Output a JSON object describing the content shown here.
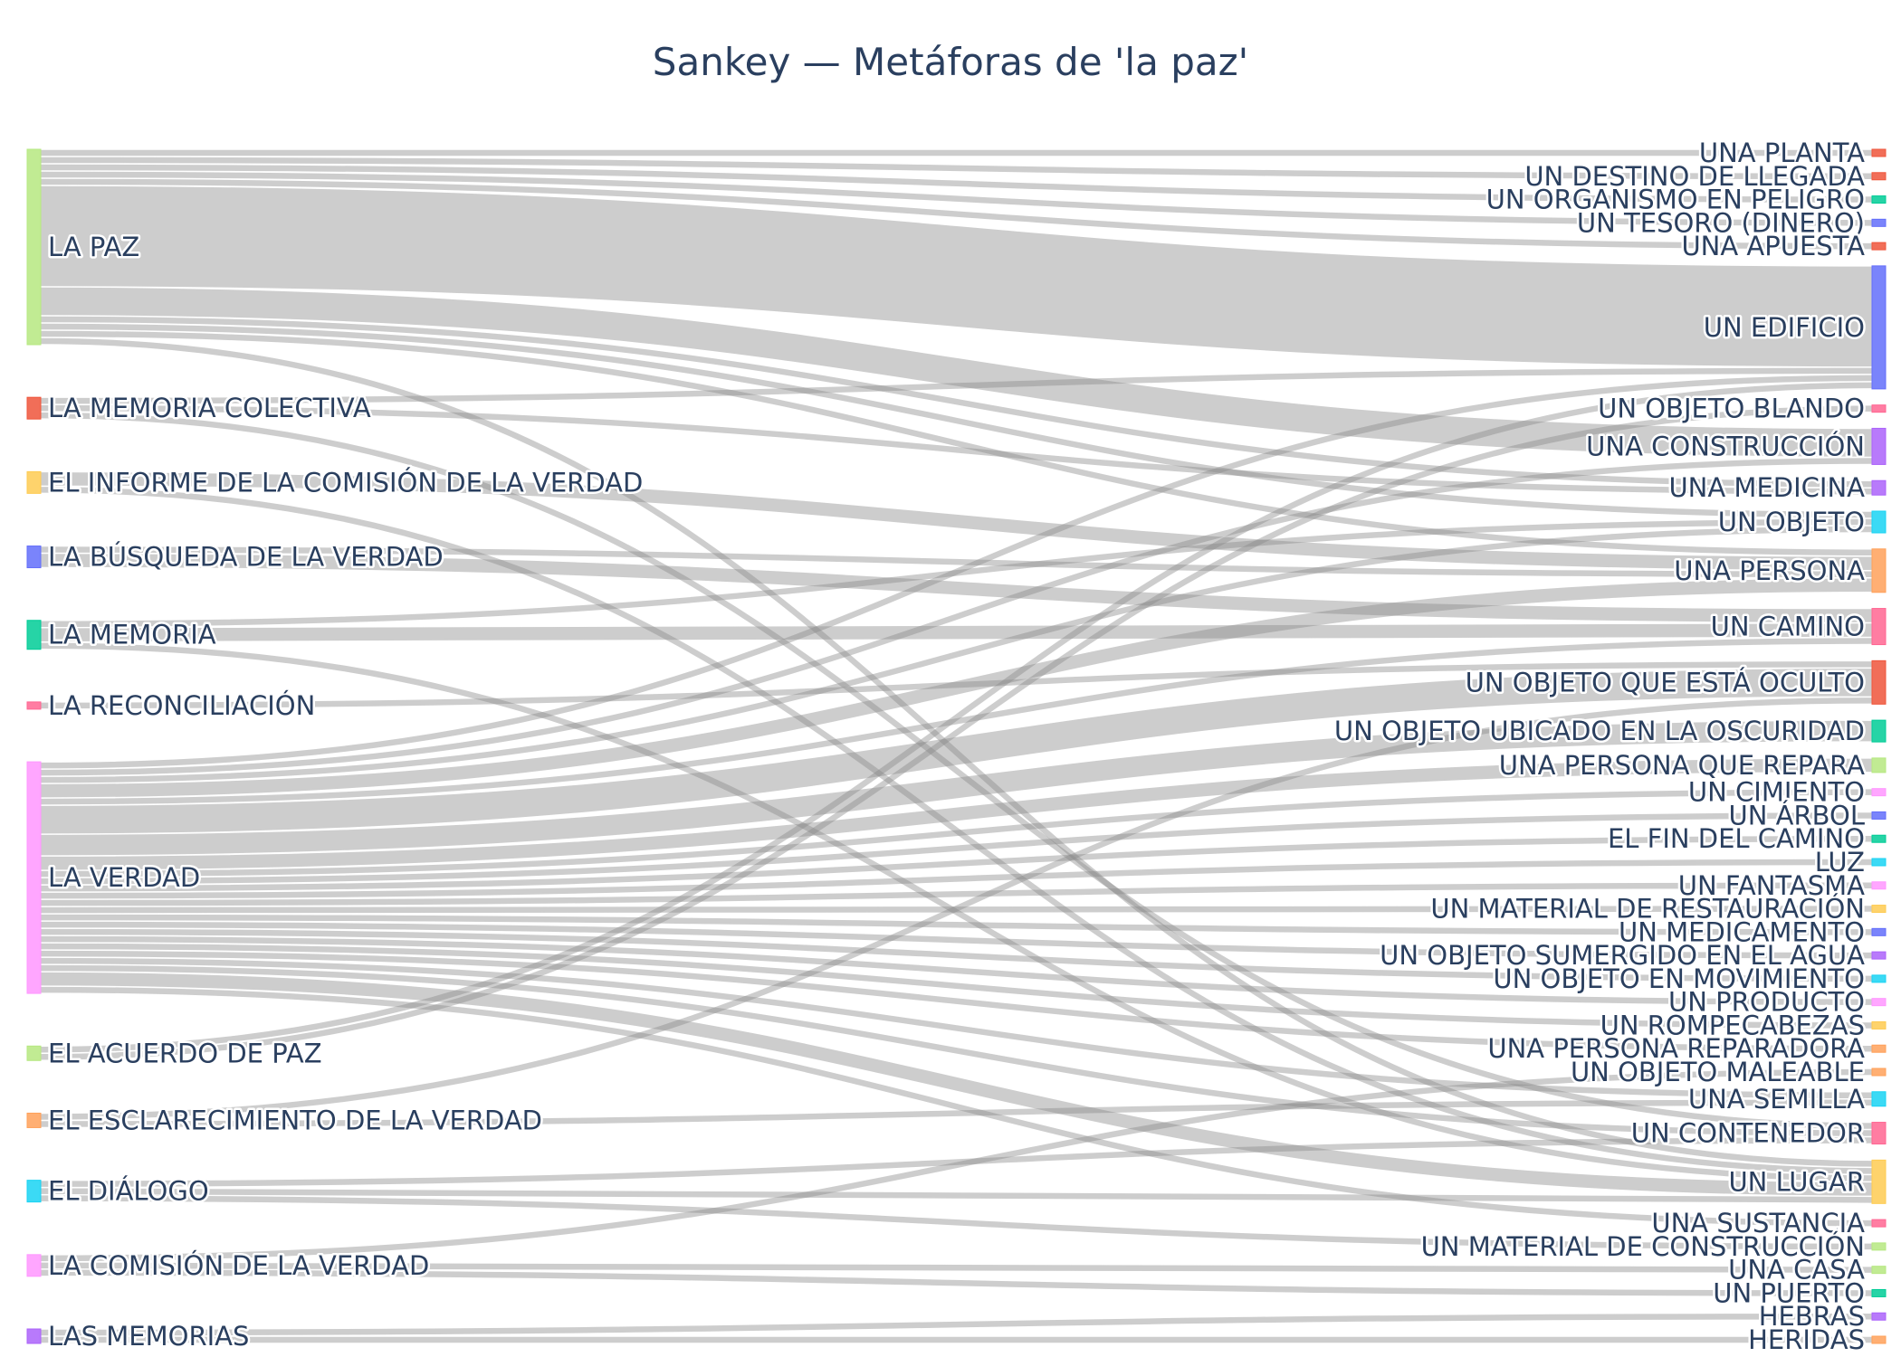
{
  "chart_data": {
    "type": "sankey",
    "title": "Sankey — Metáforas de 'la paz'",
    "link_color": "#888888",
    "sources": [
      {
        "name": "LA PAZ",
        "color": "#b6e880"
      },
      {
        "name": "LA MEMORIA COLECTIVA",
        "color": "#ef553b"
      },
      {
        "name": "EL INFORME DE LA COMISIÓN DE LA VERDAD",
        "color": "#fecb52"
      },
      {
        "name": "LA BÚSQUEDA DE LA VERDAD",
        "color": "#636efa"
      },
      {
        "name": "LA MEMORIA",
        "color": "#00cc96"
      },
      {
        "name": "LA RECONCILIACIÓN",
        "color": "#ff6692"
      },
      {
        "name": "LA VERDAD",
        "color": "#ff97ff"
      },
      {
        "name": "EL ACUERDO DE PAZ",
        "color": "#b6e880"
      },
      {
        "name": "EL ESCLARECIMIENTO DE LA VERDAD",
        "color": "#ffa15a"
      },
      {
        "name": "EL DIÁLOGO",
        "color": "#19d3f3"
      },
      {
        "name": "LA COMISIÓN DE LA VERDAD",
        "color": "#ff97ff"
      },
      {
        "name": "LAS MEMORIAS",
        "color": "#ab63fa"
      }
    ],
    "targets": [
      {
        "name": "UNA PLANTA",
        "color": "#ef553b"
      },
      {
        "name": "UN DESTINO DE LLEGADA",
        "color": "#ef553b"
      },
      {
        "name": "UN ORGANISMO EN PELIGRO",
        "color": "#00cc96"
      },
      {
        "name": "UN TESORO (DINERO)",
        "color": "#636efa"
      },
      {
        "name": "UNA APUESTA",
        "color": "#ef553b"
      },
      {
        "name": "UN EDIFICIO",
        "color": "#636efa"
      },
      {
        "name": "UN OBJETO BLANDO",
        "color": "#ff6692"
      },
      {
        "name": "UNA CONSTRUCCIÓN",
        "color": "#ab63fa"
      },
      {
        "name": "UNA MEDICINA",
        "color": "#ab63fa"
      },
      {
        "name": "UN OBJETO",
        "color": "#19d3f3"
      },
      {
        "name": "UNA PERSONA",
        "color": "#ffa15a"
      },
      {
        "name": "UN CAMINO",
        "color": "#ff6692"
      },
      {
        "name": "UN OBJETO QUE ESTÁ OCULTO",
        "color": "#ef553b"
      },
      {
        "name": "UN OBJETO UBICADO EN LA OSCURIDAD",
        "color": "#00cc96"
      },
      {
        "name": "UNA PERSONA QUE REPARA",
        "color": "#b6e880"
      },
      {
        "name": "UN CIMIENTO",
        "color": "#ff97ff"
      },
      {
        "name": "UN ÁRBOL",
        "color": "#636efa"
      },
      {
        "name": "EL FIN DEL CAMINO",
        "color": "#00cc96"
      },
      {
        "name": "LUZ",
        "color": "#19d3f3"
      },
      {
        "name": "UN FANTASMA",
        "color": "#ff97ff"
      },
      {
        "name": "UN MATERIAL DE RESTAURACIÓN",
        "color": "#fecb52"
      },
      {
        "name": "UN MEDICAMENTO",
        "color": "#636efa"
      },
      {
        "name": "UN OBJETO SUMERGIDO EN EL AGUA",
        "color": "#ab63fa"
      },
      {
        "name": "UN OBJETO EN MOVIMIENTO",
        "color": "#19d3f3"
      },
      {
        "name": "UN PRODUCTO",
        "color": "#ff97ff"
      },
      {
        "name": "UN ROMPECABEZAS",
        "color": "#fecb52"
      },
      {
        "name": "UNA PERSONA REPARADORA",
        "color": "#ffa15a"
      },
      {
        "name": "UN OBJETO MALEABLE",
        "color": "#ffa15a"
      },
      {
        "name": "UNA SEMILLA",
        "color": "#19d3f3"
      },
      {
        "name": "UN CONTENEDOR",
        "color": "#ff6692"
      },
      {
        "name": "UN LUGAR",
        "color": "#fecb52"
      },
      {
        "name": "UNA SUSTANCIA",
        "color": "#ff6692"
      },
      {
        "name": "UN MATERIAL DE CONSTRUCCIÓN",
        "color": "#b6e880"
      },
      {
        "name": "UNA CASA",
        "color": "#b6e880"
      },
      {
        "name": "UN PUERTO",
        "color": "#00cc96"
      },
      {
        "name": "HEBRAS",
        "color": "#ab63fa"
      },
      {
        "name": "HERIDAS",
        "color": "#ffa15a"
      }
    ],
    "links": [
      {
        "source": "LA PAZ",
        "target": "UNA PLANTA",
        "value": 1
      },
      {
        "source": "LA PAZ",
        "target": "UN DESTINO DE LLEGADA",
        "value": 1
      },
      {
        "source": "LA PAZ",
        "target": "UN ORGANISMO EN PELIGRO",
        "value": 1
      },
      {
        "source": "LA PAZ",
        "target": "UN TESORO (DINERO)",
        "value": 1
      },
      {
        "source": "LA PAZ",
        "target": "UNA APUESTA",
        "value": 1
      },
      {
        "source": "LA PAZ",
        "target": "UN EDIFICIO",
        "value": 14
      },
      {
        "source": "LA PAZ",
        "target": "UNA CONSTRUCCIÓN",
        "value": 4
      },
      {
        "source": "LA PAZ",
        "target": "UN OBJETO",
        "value": 1
      },
      {
        "source": "LA PAZ",
        "target": "UNA PERSONA",
        "value": 1
      },
      {
        "source": "LA PAZ",
        "target": "UNA MEDICINA",
        "value": 1
      },
      {
        "source": "LA PAZ",
        "target": "UN LUGAR",
        "value": 1
      },
      {
        "source": "LA MEMORIA COLECTIVA",
        "target": "UN EDIFICIO",
        "value": 1
      },
      {
        "source": "LA MEMORIA COLECTIVA",
        "target": "UNA MEDICINA",
        "value": 1
      },
      {
        "source": "LA MEMORIA COLECTIVA",
        "target": "UN CONTENEDOR",
        "value": 1
      },
      {
        "source": "EL INFORME DE LA COMISIÓN DE LA VERDAD",
        "target": "UNA PERSONA",
        "value": 2
      },
      {
        "source": "EL INFORME DE LA COMISIÓN DE LA VERDAD",
        "target": "UN LUGAR",
        "value": 1
      },
      {
        "source": "LA BÚSQUEDA DE LA VERDAD",
        "target": "UNA PERSONA",
        "value": 1
      },
      {
        "source": "LA BÚSQUEDA DE LA VERDAD",
        "target": "UN CAMINO",
        "value": 2
      },
      {
        "source": "LA MEMORIA",
        "target": "UN OBJETO",
        "value": 1
      },
      {
        "source": "LA MEMORIA",
        "target": "UN CAMINO",
        "value": 2
      },
      {
        "source": "LA MEMORIA",
        "target": "UN LUGAR",
        "value": 1
      },
      {
        "source": "LA RECONCILIACIÓN",
        "target": "UN OBJETO QUE ESTÁ OCULTO",
        "value": 1
      },
      {
        "source": "LA VERDAD",
        "target": "UN EDIFICIO",
        "value": 1
      },
      {
        "source": "LA VERDAD",
        "target": "UNA CONSTRUCCIÓN",
        "value": 1
      },
      {
        "source": "LA VERDAD",
        "target": "UN OBJETO",
        "value": 1
      },
      {
        "source": "LA VERDAD",
        "target": "UNA PERSONA",
        "value": 2
      },
      {
        "source": "LA VERDAD",
        "target": "UN CAMINO",
        "value": 1
      },
      {
        "source": "LA VERDAD",
        "target": "UN OBJETO QUE ESTÁ OCULTO",
        "value": 4
      },
      {
        "source": "LA VERDAD",
        "target": "UN OBJETO UBICADO EN LA OSCURIDAD",
        "value": 3
      },
      {
        "source": "LA VERDAD",
        "target": "UNA PERSONA QUE REPARA",
        "value": 2
      },
      {
        "source": "LA VERDAD",
        "target": "UN CIMIENTO",
        "value": 1
      },
      {
        "source": "LA VERDAD",
        "target": "UN ÁRBOL",
        "value": 1
      },
      {
        "source": "LA VERDAD",
        "target": "EL FIN DEL CAMINO",
        "value": 1
      },
      {
        "source": "LA VERDAD",
        "target": "LUZ",
        "value": 1
      },
      {
        "source": "LA VERDAD",
        "target": "UN FANTASMA",
        "value": 1
      },
      {
        "source": "LA VERDAD",
        "target": "UN MATERIAL DE RESTAURACIÓN",
        "value": 1
      },
      {
        "source": "LA VERDAD",
        "target": "UN MEDICAMENTO",
        "value": 1
      },
      {
        "source": "LA VERDAD",
        "target": "UN OBJETO SUMERGIDO EN EL AGUA",
        "value": 1
      },
      {
        "source": "LA VERDAD",
        "target": "UN OBJETO EN MOVIMIENTO",
        "value": 1
      },
      {
        "source": "LA VERDAD",
        "target": "UN PRODUCTO",
        "value": 1
      },
      {
        "source": "LA VERDAD",
        "target": "UN ROMPECABEZAS",
        "value": 1
      },
      {
        "source": "LA VERDAD",
        "target": "UNA PERSONA REPARADORA",
        "value": 1
      },
      {
        "source": "LA VERDAD",
        "target": "UNA SEMILLA",
        "value": 1
      },
      {
        "source": "LA VERDAD",
        "target": "UN CONTENEDOR",
        "value": 1
      },
      {
        "source": "LA VERDAD",
        "target": "UN LUGAR",
        "value": 2
      },
      {
        "source": "LA VERDAD",
        "target": "UNA SUSTANCIA",
        "value": 1
      },
      {
        "source": "EL ACUERDO DE PAZ",
        "target": "UN EDIFICIO",
        "value": 1
      },
      {
        "source": "EL ACUERDO DE PAZ",
        "target": "UN OBJETO BLANDO",
        "value": 1
      },
      {
        "source": "EL ESCLARECIMIENTO DE LA VERDAD",
        "target": "UN OBJETO QUE ESTÁ OCULTO",
        "value": 1
      },
      {
        "source": "EL ESCLARECIMIENTO DE LA VERDAD",
        "target": "UNA SEMILLA",
        "value": 1
      },
      {
        "source": "EL DIÁLOGO",
        "target": "UN CONTENEDOR",
        "value": 1
      },
      {
        "source": "EL DIÁLOGO",
        "target": "UN LUGAR",
        "value": 1
      },
      {
        "source": "EL DIÁLOGO",
        "target": "UN MATERIAL DE CONSTRUCCIÓN",
        "value": 1
      },
      {
        "source": "LA COMISIÓN DE LA VERDAD",
        "target": "UN OBJETO MALEABLE",
        "value": 1
      },
      {
        "source": "LA COMISIÓN DE LA VERDAD",
        "target": "UNA CASA",
        "value": 1
      },
      {
        "source": "LA COMISIÓN DE LA VERDAD",
        "target": "UN PUERTO",
        "value": 1
      },
      {
        "source": "LAS MEMORIAS",
        "target": "HEBRAS",
        "value": 1
      },
      {
        "source": "LAS MEMORIAS",
        "target": "HERIDAS",
        "value": 1
      }
    ]
  }
}
